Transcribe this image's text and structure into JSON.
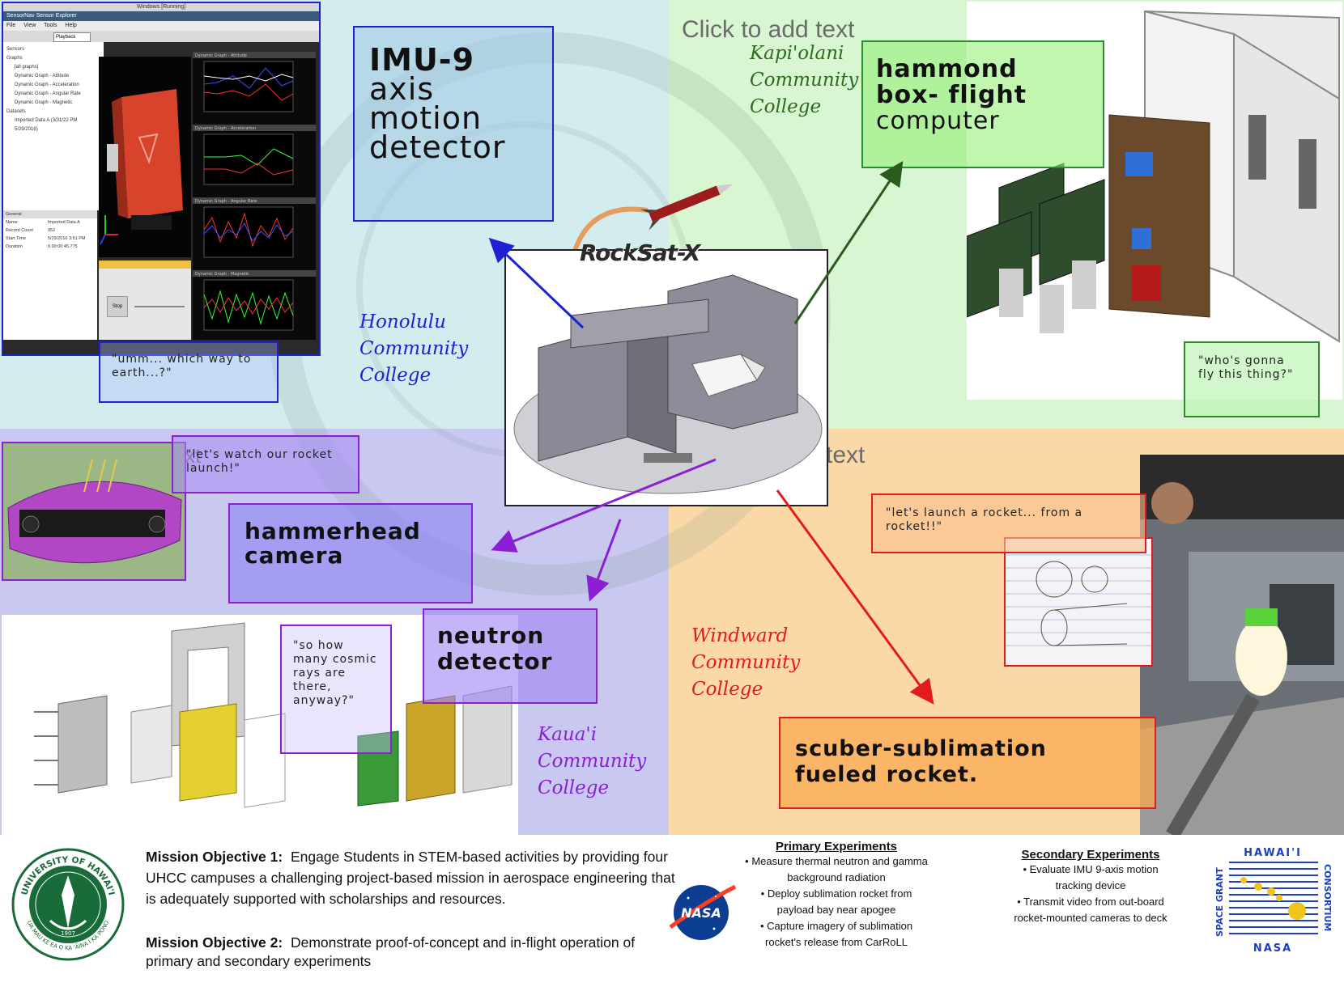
{
  "add_text_placeholders": [
    "Click to add text",
    "text",
    "xt"
  ],
  "imu_box": {
    "line1": "IMU-9",
    "line2": "axis",
    "line3": "motion",
    "line4": "detector"
  },
  "hammond_box": {
    "line1": "hammond",
    "line2": "box- flight",
    "line3": "computer"
  },
  "hammerhead_box": {
    "line1": "hammerhead",
    "line2": "camera"
  },
  "neutron_box": {
    "line1": "neutron",
    "line2": "detector"
  },
  "scuber_box": {
    "line1": "scuber-sublimation",
    "line2": "fueled rocket."
  },
  "quotes": {
    "which_way": "\"umm... which way to earth...?\"",
    "fly": "\"who's gonna fly this thing?\"",
    "watch": "\"let's watch our rocket launch!\"",
    "cosmic": "\"so how many cosmic rays are there, anyway?\"",
    "launch": "\"let's launch a rocket... from a rocket!!\""
  },
  "colleges": {
    "honolulu": [
      "Honolulu",
      "Community",
      "College"
    ],
    "kapiolani": [
      "Kapi'olani",
      "Community",
      "College"
    ],
    "kauai": [
      "Kaua'i",
      "Community",
      "College"
    ],
    "windward": [
      "Windward",
      "Community",
      "College"
    ]
  },
  "center_logo": "RockSat-X",
  "software_window": {
    "title": "Windows [Running]",
    "app": "SensorNav Sensor Explorer",
    "menu": [
      "File",
      "View",
      "Tools",
      "Help"
    ],
    "playback_label": "Playback",
    "tree": [
      "Sensors",
      "Graphs",
      "[all graphs]",
      "Dynamic Graph - Attitude",
      "Dynamic Graph - Acceleration",
      "Dynamic Graph - Angular Rate",
      "Dynamic Graph - Magnetic",
      "Datasets",
      "Imported Data A (3/31/22 PM 5/29/2016)"
    ],
    "graphs": [
      "Dynamic Graph - Attitude",
      "Dynamic Graph - Acceleration",
      "Dynamic Graph - Angular Rate",
      "Dynamic Graph - Magnetic"
    ],
    "props": [
      [
        "Name",
        "Imported Data A"
      ],
      [
        "Record Count",
        "952"
      ],
      [
        "Start Time",
        "5/29/2016 3:51 PM"
      ],
      [
        "Duration",
        "0.00:00:45.775"
      ]
    ],
    "stop": "Stop"
  },
  "footer": {
    "objective1_label": "Mission Objective 1:",
    "objective1_text": "Engage Students in STEM-based activities by providing four UHCC campuses a challenging project-based mission in aerospace engineering that is adequately supported with scholarships and resources.",
    "objective2_label": "Mission Objective 2:",
    "objective2_text": "Demonstrate proof-of-concept and in-flight operation of primary and secondary experiments",
    "primary_title": "Primary Experiments",
    "primary_items": [
      "Measure thermal neutron and gamma background radiation",
      "Deploy sublimation rocket from payload bay near apogee",
      "Capture imagery of sublimation rocket's release from CarRoLL"
    ],
    "secondary_title": "Secondary Experiments",
    "secondary_items": [
      "Evaluate IMU 9-axis motion tracking device",
      "Transmit video from out-board rocket-mounted cameras to deck"
    ],
    "uh_seal_text": "UNIVERSITY OF HAWAI'I",
    "uh_seal_motto": "UA MAU KE EA O KA 'ĀINA I KA PONO",
    "uh_seal_year": "1907",
    "nasa_label": "NASA",
    "hsgc_top": "HAWAI'I",
    "hsgc_left": "SPACE GRANT",
    "hsgc_right": "CONSORTIUM",
    "hsgc_bottom": "NASA"
  },
  "colors": {
    "blue": "#1f1fd6",
    "green": "#2d6b1e",
    "purple": "#8a1fd6",
    "red": "#e31b1b"
  }
}
